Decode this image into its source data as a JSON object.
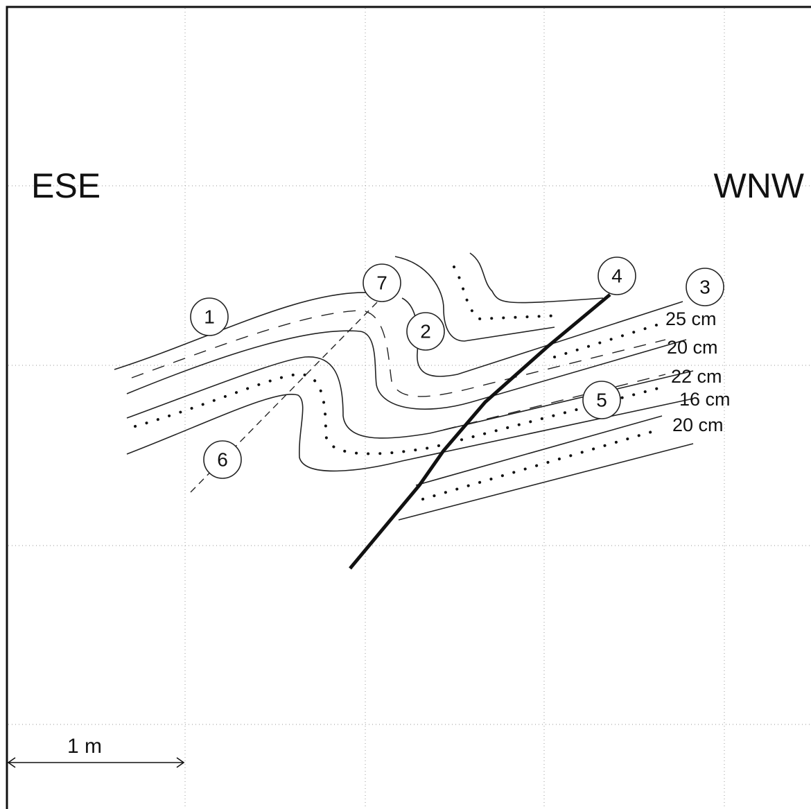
{
  "orientation": {
    "left": "ESE",
    "right": "WNW"
  },
  "scale": {
    "label": "1 m"
  },
  "markers": [
    {
      "label": "1"
    },
    {
      "label": "2"
    },
    {
      "label": "3"
    },
    {
      "label": "4"
    },
    {
      "label": "5"
    },
    {
      "label": "6"
    },
    {
      "label": "7"
    }
  ],
  "thicknesses": [
    "25 cm",
    "20 cm",
    "22 cm",
    "16 cm",
    "20 cm"
  ]
}
